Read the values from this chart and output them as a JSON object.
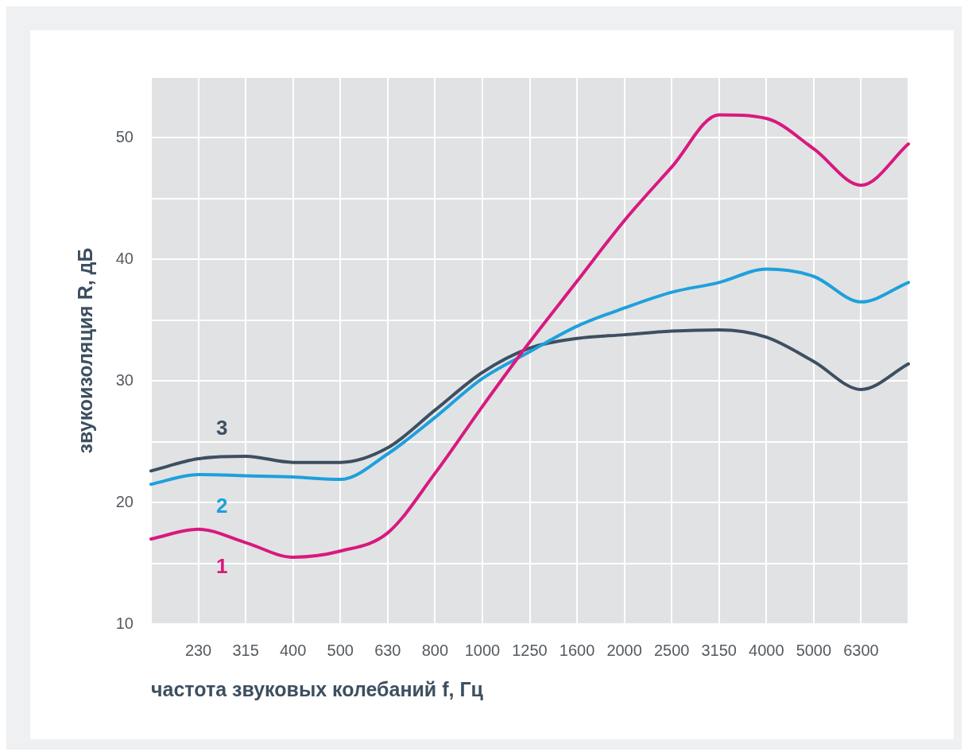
{
  "chart_data": {
    "type": "line",
    "xlabel": "частота звуковых колебаний f, Гц",
    "ylabel": "звукоизоляция R, дБ",
    "categories": [
      null,
      "230",
      "315",
      "400",
      "500",
      "630",
      "800",
      "1000",
      "1250",
      "1600",
      "2000",
      "2500",
      "3150",
      "4000",
      "5000",
      "6300",
      null
    ],
    "series": [
      {
        "name": "1",
        "color": "#d8197f",
        "values": [
          17.0,
          17.8,
          16.7,
          15.5,
          16.0,
          17.5,
          22.4,
          27.9,
          33.2,
          38.2,
          43.2,
          47.6,
          51.9,
          51.6,
          49.1,
          46.1,
          49.5
        ]
      },
      {
        "name": "2",
        "color": "#1ea0dc",
        "values": [
          21.5,
          22.3,
          22.2,
          22.1,
          21.9,
          24.0,
          27.0,
          30.2,
          32.4,
          34.5,
          36.0,
          37.3,
          38.1,
          39.2,
          38.6,
          36.5,
          38.1
        ]
      },
      {
        "name": "3",
        "color": "#3d4f60",
        "values": [
          22.6,
          23.6,
          23.8,
          23.3,
          23.3,
          24.5,
          27.6,
          30.7,
          32.7,
          33.5,
          33.8,
          34.1,
          34.2,
          33.6,
          31.6,
          29.3,
          31.4
        ]
      }
    ],
    "ylim": [
      10,
      55
    ],
    "yticks": [
      10,
      {
        "value": 15,
        "label": null
      },
      20,
      {
        "value": 25,
        "label": null
      },
      30,
      {
        "value": 35,
        "label": null
      },
      40,
      {
        "value": 45,
        "label": null
      },
      50,
      {
        "value": 55,
        "label": null
      }
    ],
    "grid": true,
    "legend": false,
    "marker": "none",
    "line_style": "solid"
  }
}
